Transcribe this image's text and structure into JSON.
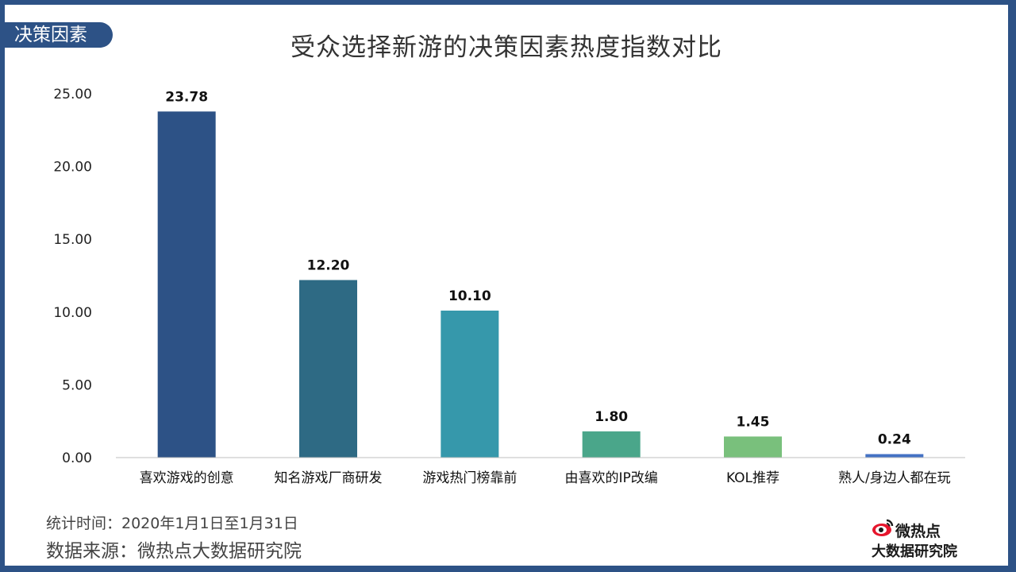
{
  "section_tag": "决策因素",
  "title": "受众选择新游的决策因素热度指数对比",
  "notes": {
    "time": "统计时间：2020年1月1日至1月31日",
    "source": "数据来源：微热点大数据研究院"
  },
  "brand": {
    "name": "微热点",
    "sub": "大数据研究院",
    "icon": "sina-weibo-eye-icon"
  },
  "colors": {
    "frame": "#2d5286",
    "bars": [
      "#2d5286",
      "#2e6a84",
      "#3698ab",
      "#4aa68a",
      "#79c07c",
      "#4472c4"
    ]
  },
  "chart_data": {
    "type": "bar",
    "title": "受众选择新游的决策因素热度指数对比",
    "xlabel": "",
    "ylabel": "",
    "categories": [
      "喜欢游戏的创意",
      "知名游戏厂商研发",
      "游戏热门榜靠前",
      "由喜欢的IP改编",
      "KOL推荐",
      "熟人/身边人都在玩"
    ],
    "values": [
      23.78,
      12.2,
      10.1,
      1.8,
      1.45,
      0.24
    ],
    "value_labels": [
      "23.78",
      "12.20",
      "10.10",
      "1.80",
      "1.45",
      "0.24"
    ],
    "y_ticks": [
      "0.00",
      "5.00",
      "10.00",
      "15.00",
      "20.00",
      "25.00"
    ],
    "ylim": [
      0,
      25
    ],
    "grid": false,
    "legend": "none"
  }
}
